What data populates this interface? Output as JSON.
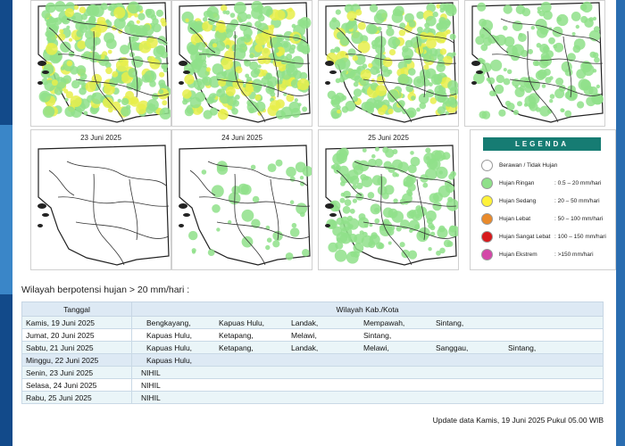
{
  "maps": {
    "top": [
      {
        "date": "",
        "coverage": "heavy"
      },
      {
        "date": "",
        "coverage": "heavy"
      },
      {
        "date": "",
        "coverage": "dense"
      },
      {
        "date": "",
        "coverage": "light"
      }
    ],
    "bottom": [
      {
        "date": "23 Juni 2025",
        "coverage": "none"
      },
      {
        "date": "24 Juni 2025",
        "coverage": "sparse"
      },
      {
        "date": "25 Juni 2025",
        "coverage": "medium"
      }
    ]
  },
  "legend": {
    "title": "LEGENDA",
    "items": [
      {
        "label": "Berawan / Tidak Hujan",
        "range": "",
        "color": "#ffffff"
      },
      {
        "label": "Hujan Ringan",
        "range": ": 0.5 – 20 mm/hari",
        "color": "#8fe08a"
      },
      {
        "label": "Hujan Sedang",
        "range": ": 20 – 50 mm/hari",
        "color": "#fff23a"
      },
      {
        "label": "Hujan Lebat",
        "range": ": 50 – 100 mm/hari",
        "color": "#e98a2b"
      },
      {
        "label": "Hujan Sangat Lebat",
        "range": ": 100 – 150 mm/hari",
        "color": "#d7191c"
      },
      {
        "label": "Hujan Ekstrem",
        "range": ": >150 mm/hari",
        "color": "#d447a8"
      }
    ]
  },
  "section_title": "Wilayah berpotensi hujan > 20 mm/hari :",
  "table": {
    "headers": [
      "Tanggal",
      "Wilayah Kab./Kota"
    ],
    "rows": [
      {
        "date": "Kamis, 19 Juni 2025",
        "regions": [
          "Bengkayang,",
          "Kapuas Hulu,",
          "Landak,",
          "Mempawah,",
          "Sintang,"
        ]
      },
      {
        "date": "Jumat, 20 Juni 2025",
        "regions": [
          "Kapuas Hulu,",
          "Ketapang,",
          "Melawi,",
          "Sintang,"
        ]
      },
      {
        "date": "Sabtu, 21 Juni 2025",
        "regions": [
          "Kapuas Hulu,",
          "Ketapang,",
          "Landak,",
          "Melawi,",
          "Sanggau,",
          "Sintang,"
        ]
      },
      {
        "date": "Minggu, 22 Juni 2025",
        "regions": [
          "Kapuas Hulu,"
        ]
      },
      {
        "date": "Senin, 23 Juni 2025",
        "regions": [
          "NIHIL"
        ]
      },
      {
        "date": "Selasa, 24 Juni 2025",
        "regions": [
          "NIHIL"
        ]
      },
      {
        "date": "Rabu, 25 Juni 2025",
        "regions": [
          "NIHIL"
        ]
      }
    ]
  },
  "footer": "Update data Kamis, 19 Juni 2025 Pukul 05.00 WIB"
}
